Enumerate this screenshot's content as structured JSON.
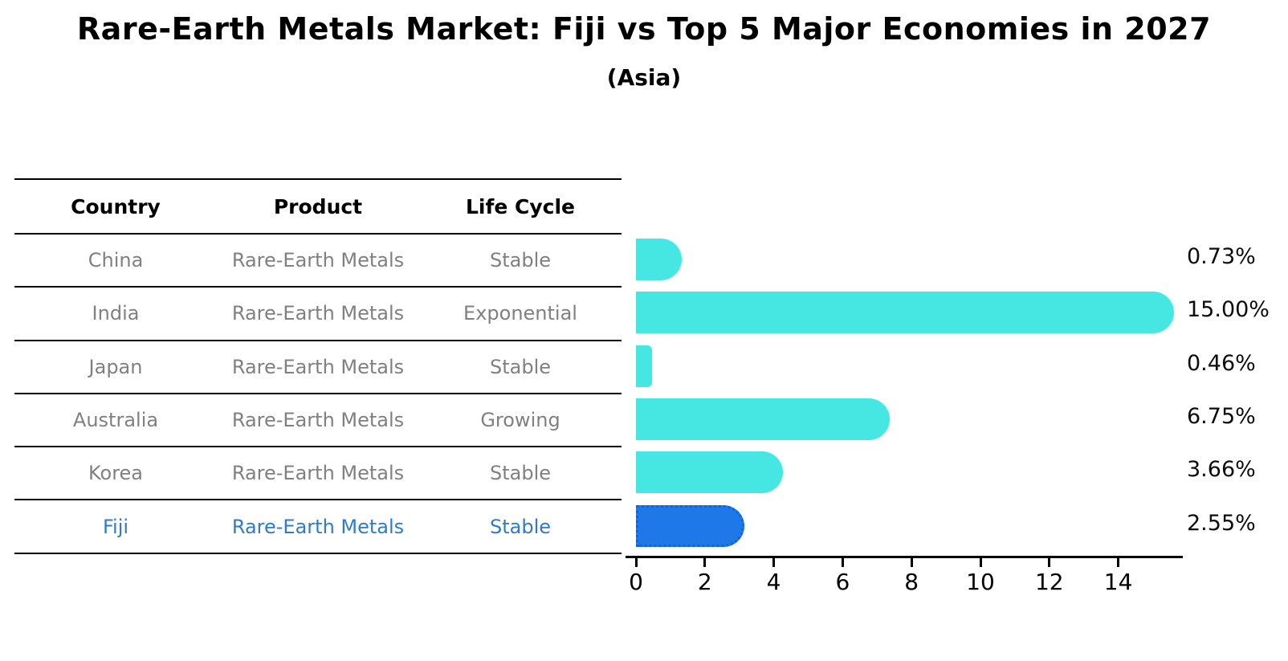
{
  "title": "Rare-Earth Metals Market: Fiji vs Top 5 Major Economies in 2027",
  "subtitle": "(Asia)",
  "table": {
    "headers": [
      "Country",
      "Product",
      "Life Cycle"
    ],
    "rows": [
      {
        "country": "China",
        "product": "Rare-Earth Metals",
        "life_cycle": "Stable",
        "highlight": false
      },
      {
        "country": "India",
        "product": "Rare-Earth Metals",
        "life_cycle": "Exponential",
        "highlight": false
      },
      {
        "country": "Japan",
        "product": "Rare-Earth Metals",
        "life_cycle": "Stable",
        "highlight": false
      },
      {
        "country": "Australia",
        "product": "Rare-Earth Metals",
        "life_cycle": "Growing",
        "highlight": false
      },
      {
        "country": "Korea",
        "product": "Rare-Earth Metals",
        "life_cycle": "Stable",
        "highlight": true
      }
    ],
    "highlight_row": {
      "country": "Fiji",
      "product": "Rare-Earth Metals",
      "life_cycle": "Stable",
      "highlight": true
    }
  },
  "chart_data": {
    "type": "bar",
    "orientation": "horizontal",
    "title": "Rare-Earth Metals Market: Fiji vs Top 5 Major Economies in 2027",
    "subtitle": "(Asia)",
    "categories": [
      "China",
      "India",
      "Japan",
      "Australia",
      "Korea",
      "Fiji"
    ],
    "values": [
      0.73,
      15.0,
      0.46,
      6.75,
      3.66,
      2.55
    ],
    "value_labels": [
      "0.73%",
      "15.00%",
      "0.46%",
      "6.75%",
      "3.66%",
      "2.55%"
    ],
    "highlight_index": 5,
    "xticks": [
      0,
      2,
      4,
      6,
      8,
      10,
      12,
      14
    ],
    "xlim": [
      0,
      15.9
    ],
    "grid": false,
    "legend_position": "none",
    "bar_color": "#46e6e2",
    "highlight_bar_color": "#1e78e8",
    "highlight_bar_edge_color": "#1563d2",
    "highlight_text_color": "#2e7cc9",
    "table_text_color": "#808080",
    "axis_color": "#000000"
  }
}
